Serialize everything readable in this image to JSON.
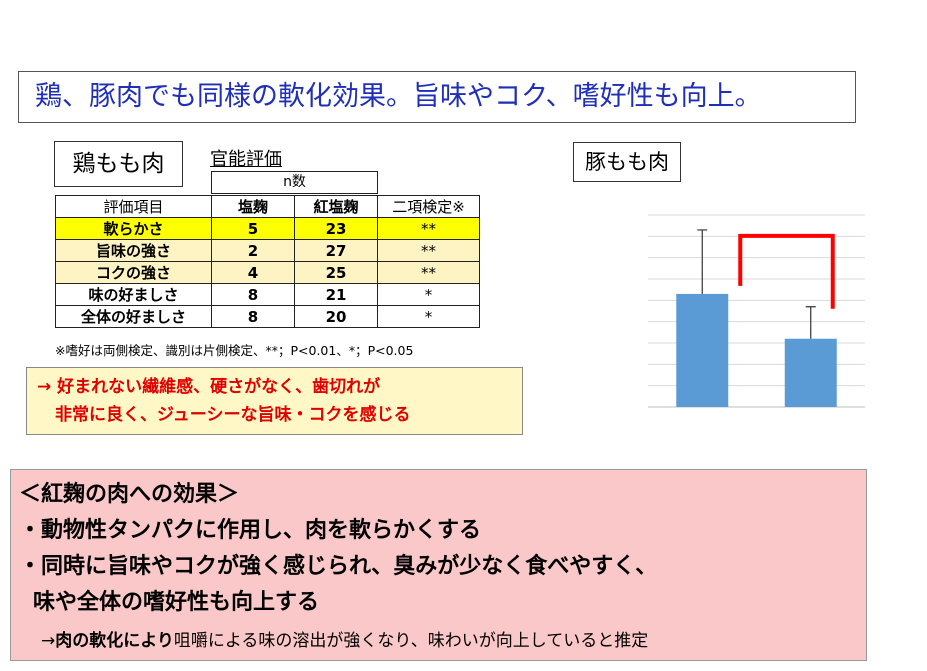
{
  "headline": "鶏、豚肉でも同様の軟化効果。旨味やコク、嗜好性も向上。",
  "chicken_label": "鶏もも肉",
  "pork_label": "豚もも肉",
  "sensory": {
    "title": "官能評価",
    "n_header": "n数",
    "columns": [
      "評価項目",
      "塩麹",
      "紅塩麹",
      "二項検定※"
    ],
    "rows": [
      {
        "item": "軟らかさ",
        "shio": "5",
        "beni": "23",
        "sig": "**"
      },
      {
        "item": "旨味の強さ",
        "shio": "2",
        "beni": "27",
        "sig": "**"
      },
      {
        "item": "コクの強さ",
        "shio": "4",
        "beni": "25",
        "sig": "**"
      },
      {
        "item": "味の好ましさ",
        "shio": "8",
        "beni": "21",
        "sig": "*"
      },
      {
        "item": "全体の好ましさ",
        "shio": "8",
        "beni": "20",
        "sig": "*"
      }
    ],
    "footnote": "※嗜好は両側検定、識別は片側検定、**；P<0.01、*；P<0.05"
  },
  "conclusion": {
    "line1": "→ 好まれない繊維感、硬さがなく、歯切れが",
    "line2": "非常に良く、ジューシーな旨味・コクを感じる"
  },
  "effects": {
    "title": "＜紅麹の肉への効果＞",
    "bullet1": "・動物性タンパクに作用し、肉を軟らかくする",
    "bullet2a": "・同時に旨味やコクが強く感じられ、臭みが少なく食べやすく、",
    "bullet2b": "味や全体の嗜好性も向上する",
    "note_prefix": "→",
    "note_bold": "肉の軟化により",
    "note_rest": "咀嚼による味の溶出が強くなり、味わいが向上していると推定"
  },
  "chart_data": {
    "type": "bar",
    "categories": [
      "",
      ""
    ],
    "values": [
      5.3,
      3.2
    ],
    "error_upper": [
      8.3,
      4.7
    ],
    "ylim": [
      0,
      9
    ],
    "grid": true,
    "significance_bracket": true,
    "colors": {
      "bar": "#5b9bd5",
      "bracket": "#ff0000",
      "grid": "#d9d9d9",
      "error": "#333333"
    }
  }
}
